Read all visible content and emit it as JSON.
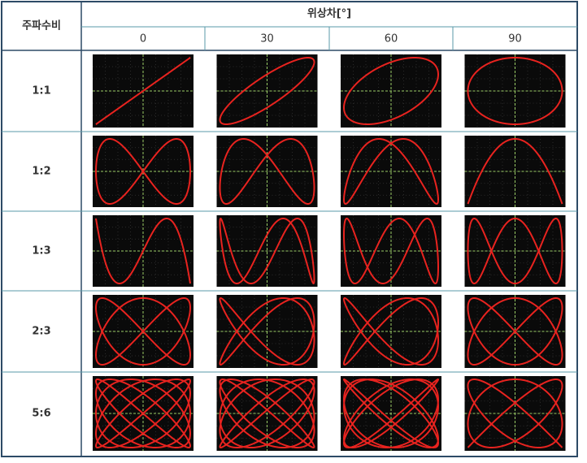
{
  "header": {
    "ratio_label": "주파수비",
    "phase_label": "위상차[°]",
    "phases": [
      "0",
      "30",
      "60",
      "90"
    ]
  },
  "rows": [
    "1:1",
    "1:2",
    "1:3",
    "2:3",
    "5:6"
  ]
}
